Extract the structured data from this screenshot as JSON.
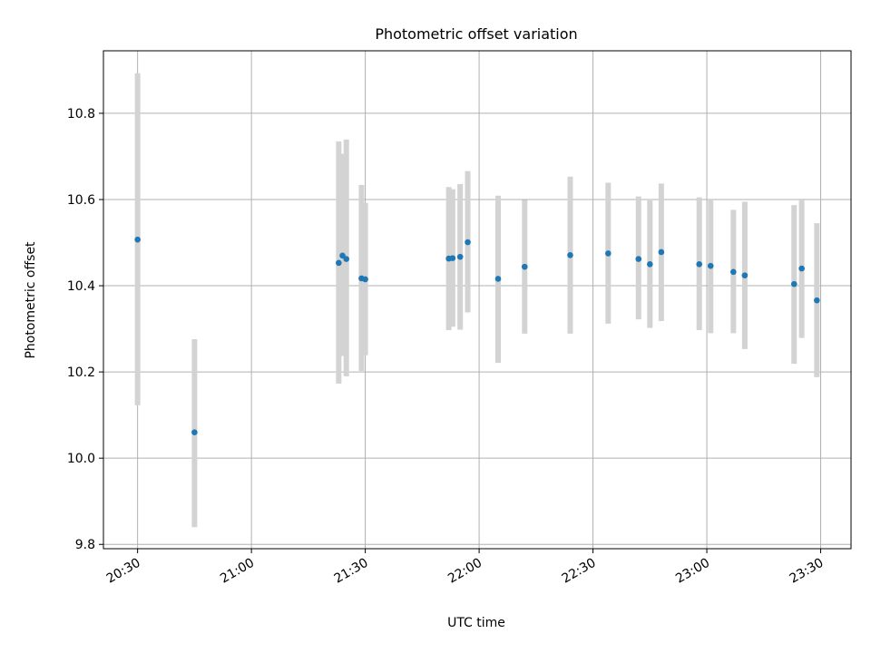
{
  "chart_data": {
    "type": "scatter",
    "title": "Photometric offset variation",
    "xlabel": "UTC time",
    "ylabel": "Photometric offset",
    "xlim": [
      "20:21",
      "23:38"
    ],
    "ylim": [
      9.79,
      10.945
    ],
    "grid": true,
    "x_ticks": [
      "20:30",
      "21:00",
      "21:30",
      "22:00",
      "22:30",
      "23:00",
      "23:30"
    ],
    "y_ticks": [
      "9.8",
      "10.0",
      "10.2",
      "10.4",
      "10.6",
      "10.8"
    ],
    "points": [
      {
        "time": "20:30",
        "y": 10.507,
        "err_low": 10.123,
        "err_high": 10.893
      },
      {
        "time": "20:45",
        "y": 10.06,
        "err_low": 9.84,
        "err_high": 10.276
      },
      {
        "time": "21:23",
        "y": 10.453,
        "err_low": 10.173,
        "err_high": 10.735
      },
      {
        "time": "21:24",
        "y": 10.47,
        "err_low": 10.237,
        "err_high": 10.706
      },
      {
        "time": "21:25",
        "y": 10.462,
        "err_low": 10.19,
        "err_high": 10.739
      },
      {
        "time": "21:29",
        "y": 10.417,
        "err_low": 10.202,
        "err_high": 10.634
      },
      {
        "time": "21:30",
        "y": 10.415,
        "err_low": 10.239,
        "err_high": 10.592
      },
      {
        "time": "21:52",
        "y": 10.463,
        "err_low": 10.297,
        "err_high": 10.629
      },
      {
        "time": "21:53",
        "y": 10.464,
        "err_low": 10.305,
        "err_high": 10.624
      },
      {
        "time": "21:55",
        "y": 10.467,
        "err_low": 10.298,
        "err_high": 10.636
      },
      {
        "time": "21:57",
        "y": 10.501,
        "err_low": 10.338,
        "err_high": 10.666
      },
      {
        "time": "22:05",
        "y": 10.416,
        "err_low": 10.221,
        "err_high": 10.609
      },
      {
        "time": "22:12",
        "y": 10.444,
        "err_low": 10.289,
        "err_high": 10.599
      },
      {
        "time": "22:24",
        "y": 10.471,
        "err_low": 10.289,
        "err_high": 10.653
      },
      {
        "time": "22:34",
        "y": 10.475,
        "err_low": 10.312,
        "err_high": 10.639
      },
      {
        "time": "22:42",
        "y": 10.462,
        "err_low": 10.322,
        "err_high": 10.607
      },
      {
        "time": "22:45",
        "y": 10.45,
        "err_low": 10.302,
        "err_high": 10.598
      },
      {
        "time": "22:48",
        "y": 10.478,
        "err_low": 10.318,
        "err_high": 10.637
      },
      {
        "time": "22:58",
        "y": 10.45,
        "err_low": 10.297,
        "err_high": 10.605
      },
      {
        "time": "23:01",
        "y": 10.446,
        "err_low": 10.29,
        "err_high": 10.6
      },
      {
        "time": "23:07",
        "y": 10.432,
        "err_low": 10.29,
        "err_high": 10.576
      },
      {
        "time": "23:10",
        "y": 10.424,
        "err_low": 10.253,
        "err_high": 10.595
      },
      {
        "time": "23:23",
        "y": 10.404,
        "err_low": 10.219,
        "err_high": 10.587
      },
      {
        "time": "23:25",
        "y": 10.44,
        "err_low": 10.279,
        "err_high": 10.602
      },
      {
        "time": "23:29",
        "y": 10.366,
        "err_low": 10.188,
        "err_high": 10.545
      }
    ],
    "point_color": "#1f77b4",
    "errorbar_color": "#d3d3d3"
  }
}
